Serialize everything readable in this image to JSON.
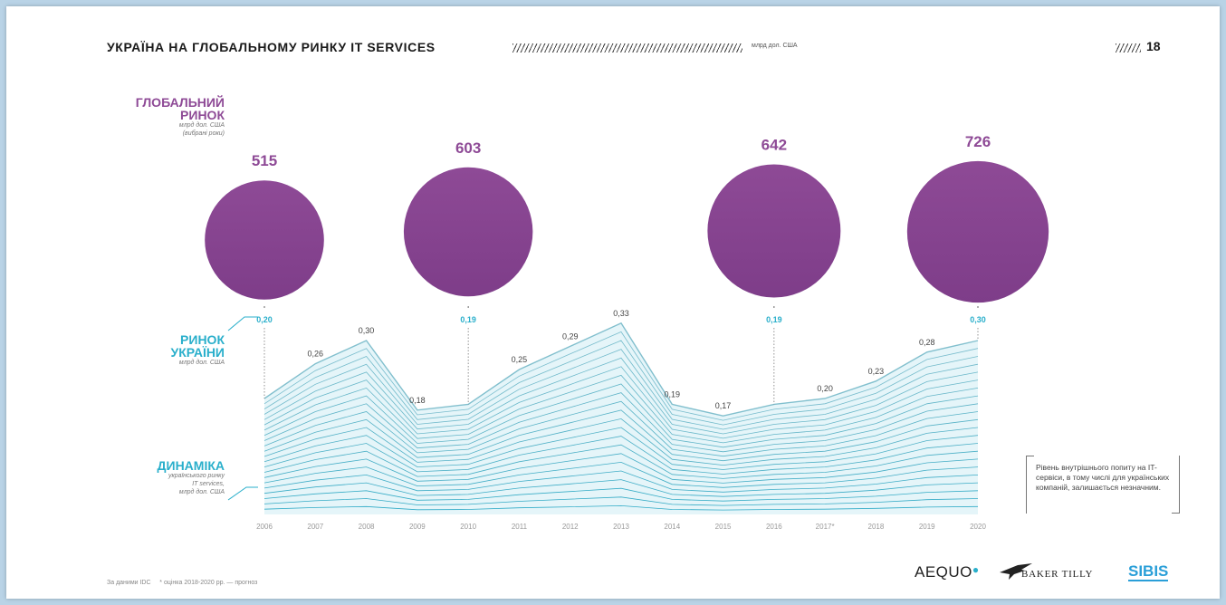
{
  "header": {
    "title": "УКРАЇНА НА ГЛОБАЛЬНОМУ РИНКУ IT SERVICES",
    "unit": "млрд дол. США",
    "page_number": "18"
  },
  "labels": {
    "global_title_line1": "ГЛОБАЛЬНИЙ",
    "global_title_line2": "РИНОК",
    "global_unit": "млрд дол. США",
    "global_note": "(вибрані роки)",
    "ukraine_title_line1": "РИНОК",
    "ukraine_title_line2": "УКРАЇНИ",
    "ukraine_unit": "млрд дол. США",
    "dynamics_title": "ДИНАМІКА",
    "dynamics_sub1": "українського ринку",
    "dynamics_sub2": "IT services,",
    "dynamics_sub3": "млрд дол. США"
  },
  "note": "Рівень внутрішнього попиту на IT-сервіси, в тому числі для українських компаній, залишається незначним.",
  "footer": {
    "source": "За даними IDC",
    "footnote": "* оцінка   2018-2020 рр. — прогноз"
  },
  "logos": {
    "aequo": "AEQUO",
    "baker_tilly": "BAKER TILLY",
    "sibis": "SIBIS"
  },
  "colors": {
    "global": "#8e4a96",
    "ukraine": "#2aafcb",
    "text": "#1a1a1a"
  },
  "chart_data": [
    {
      "type": "bubble",
      "name": "global_market",
      "categories": [
        "2006",
        "2010",
        "2016",
        "2020"
      ],
      "values": [
        515,
        603,
        642,
        726
      ],
      "value_labels": [
        "515",
        "603",
        "642",
        "726"
      ],
      "ukraine_values": [
        0.2,
        0.19,
        0.19,
        0.3
      ],
      "ukraine_labels": [
        "0,20",
        "0,19",
        "0,19",
        "0,30"
      ]
    },
    {
      "type": "area",
      "name": "ukraine_dynamics",
      "x": [
        "2006",
        "2007",
        "2008",
        "2009",
        "2010",
        "2011",
        "2012",
        "2013",
        "2014",
        "2015",
        "2016",
        "2017*",
        "2018",
        "2019",
        "2020"
      ],
      "values": [
        0.2,
        0.26,
        0.3,
        0.18,
        0.19,
        0.25,
        0.29,
        0.33,
        0.19,
        0.17,
        0.19,
        0.2,
        0.23,
        0.28,
        0.3
      ],
      "labels": [
        "",
        "0,26",
        "0,30",
        "0,18",
        "",
        "0,25",
        "0,29",
        "0,33",
        "0,19",
        "0,17",
        "",
        "0,20",
        "0,23",
        "0,28",
        ""
      ],
      "ylim": [
        0,
        0.35
      ]
    }
  ]
}
